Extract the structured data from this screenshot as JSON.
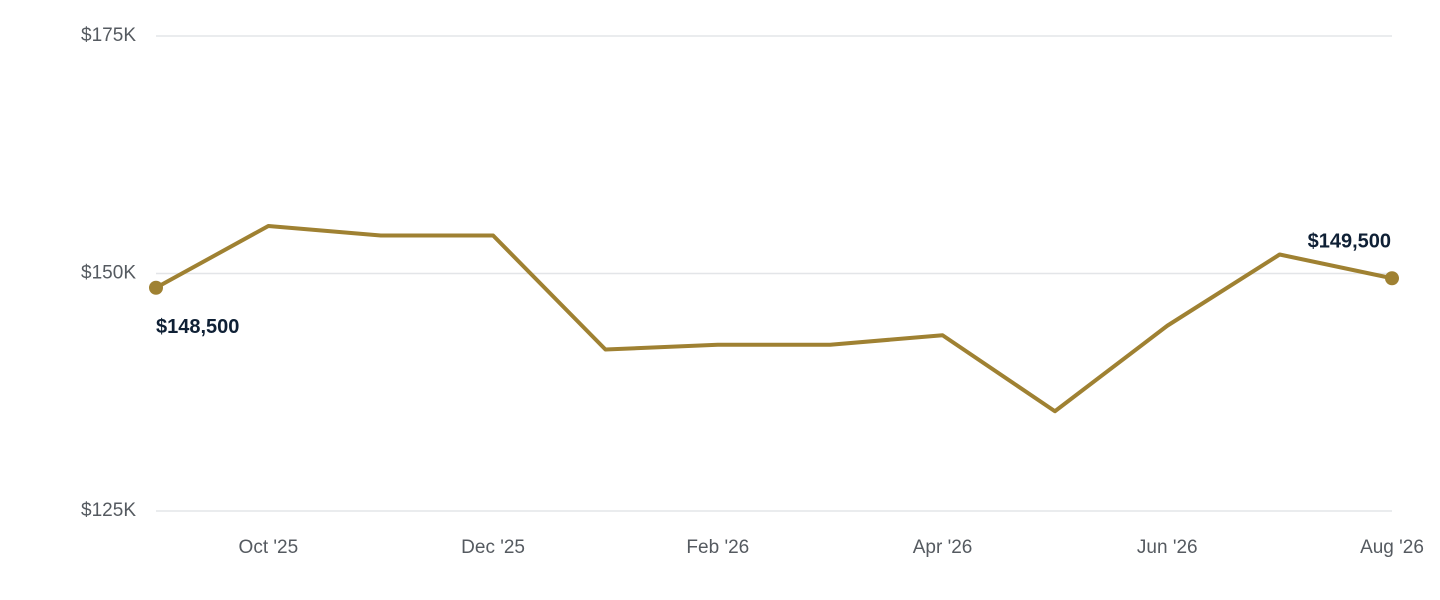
{
  "chart_data": {
    "type": "line",
    "categories": [
      null,
      "Oct '25",
      null,
      "Dec '25",
      null,
      "Feb '26",
      null,
      "Apr '26",
      null,
      "Jun '26",
      null,
      "Aug '26"
    ],
    "values": [
      148500,
      155000,
      154000,
      154000,
      142000,
      142500,
      142500,
      143500,
      135500,
      144500,
      152000,
      149500
    ],
    "value_labels": [
      "$148,500",
      null,
      null,
      null,
      null,
      null,
      null,
      null,
      null,
      null,
      null,
      "$149,500"
    ],
    "color": "#9f8132",
    "ylim": [
      125000,
      175000
    ],
    "yticks": [
      {
        "value": 125000,
        "label": "$125K"
      },
      {
        "value": 150000,
        "label": "$150K"
      },
      {
        "value": 175000,
        "label": "$175K"
      }
    ],
    "grid": true
  }
}
